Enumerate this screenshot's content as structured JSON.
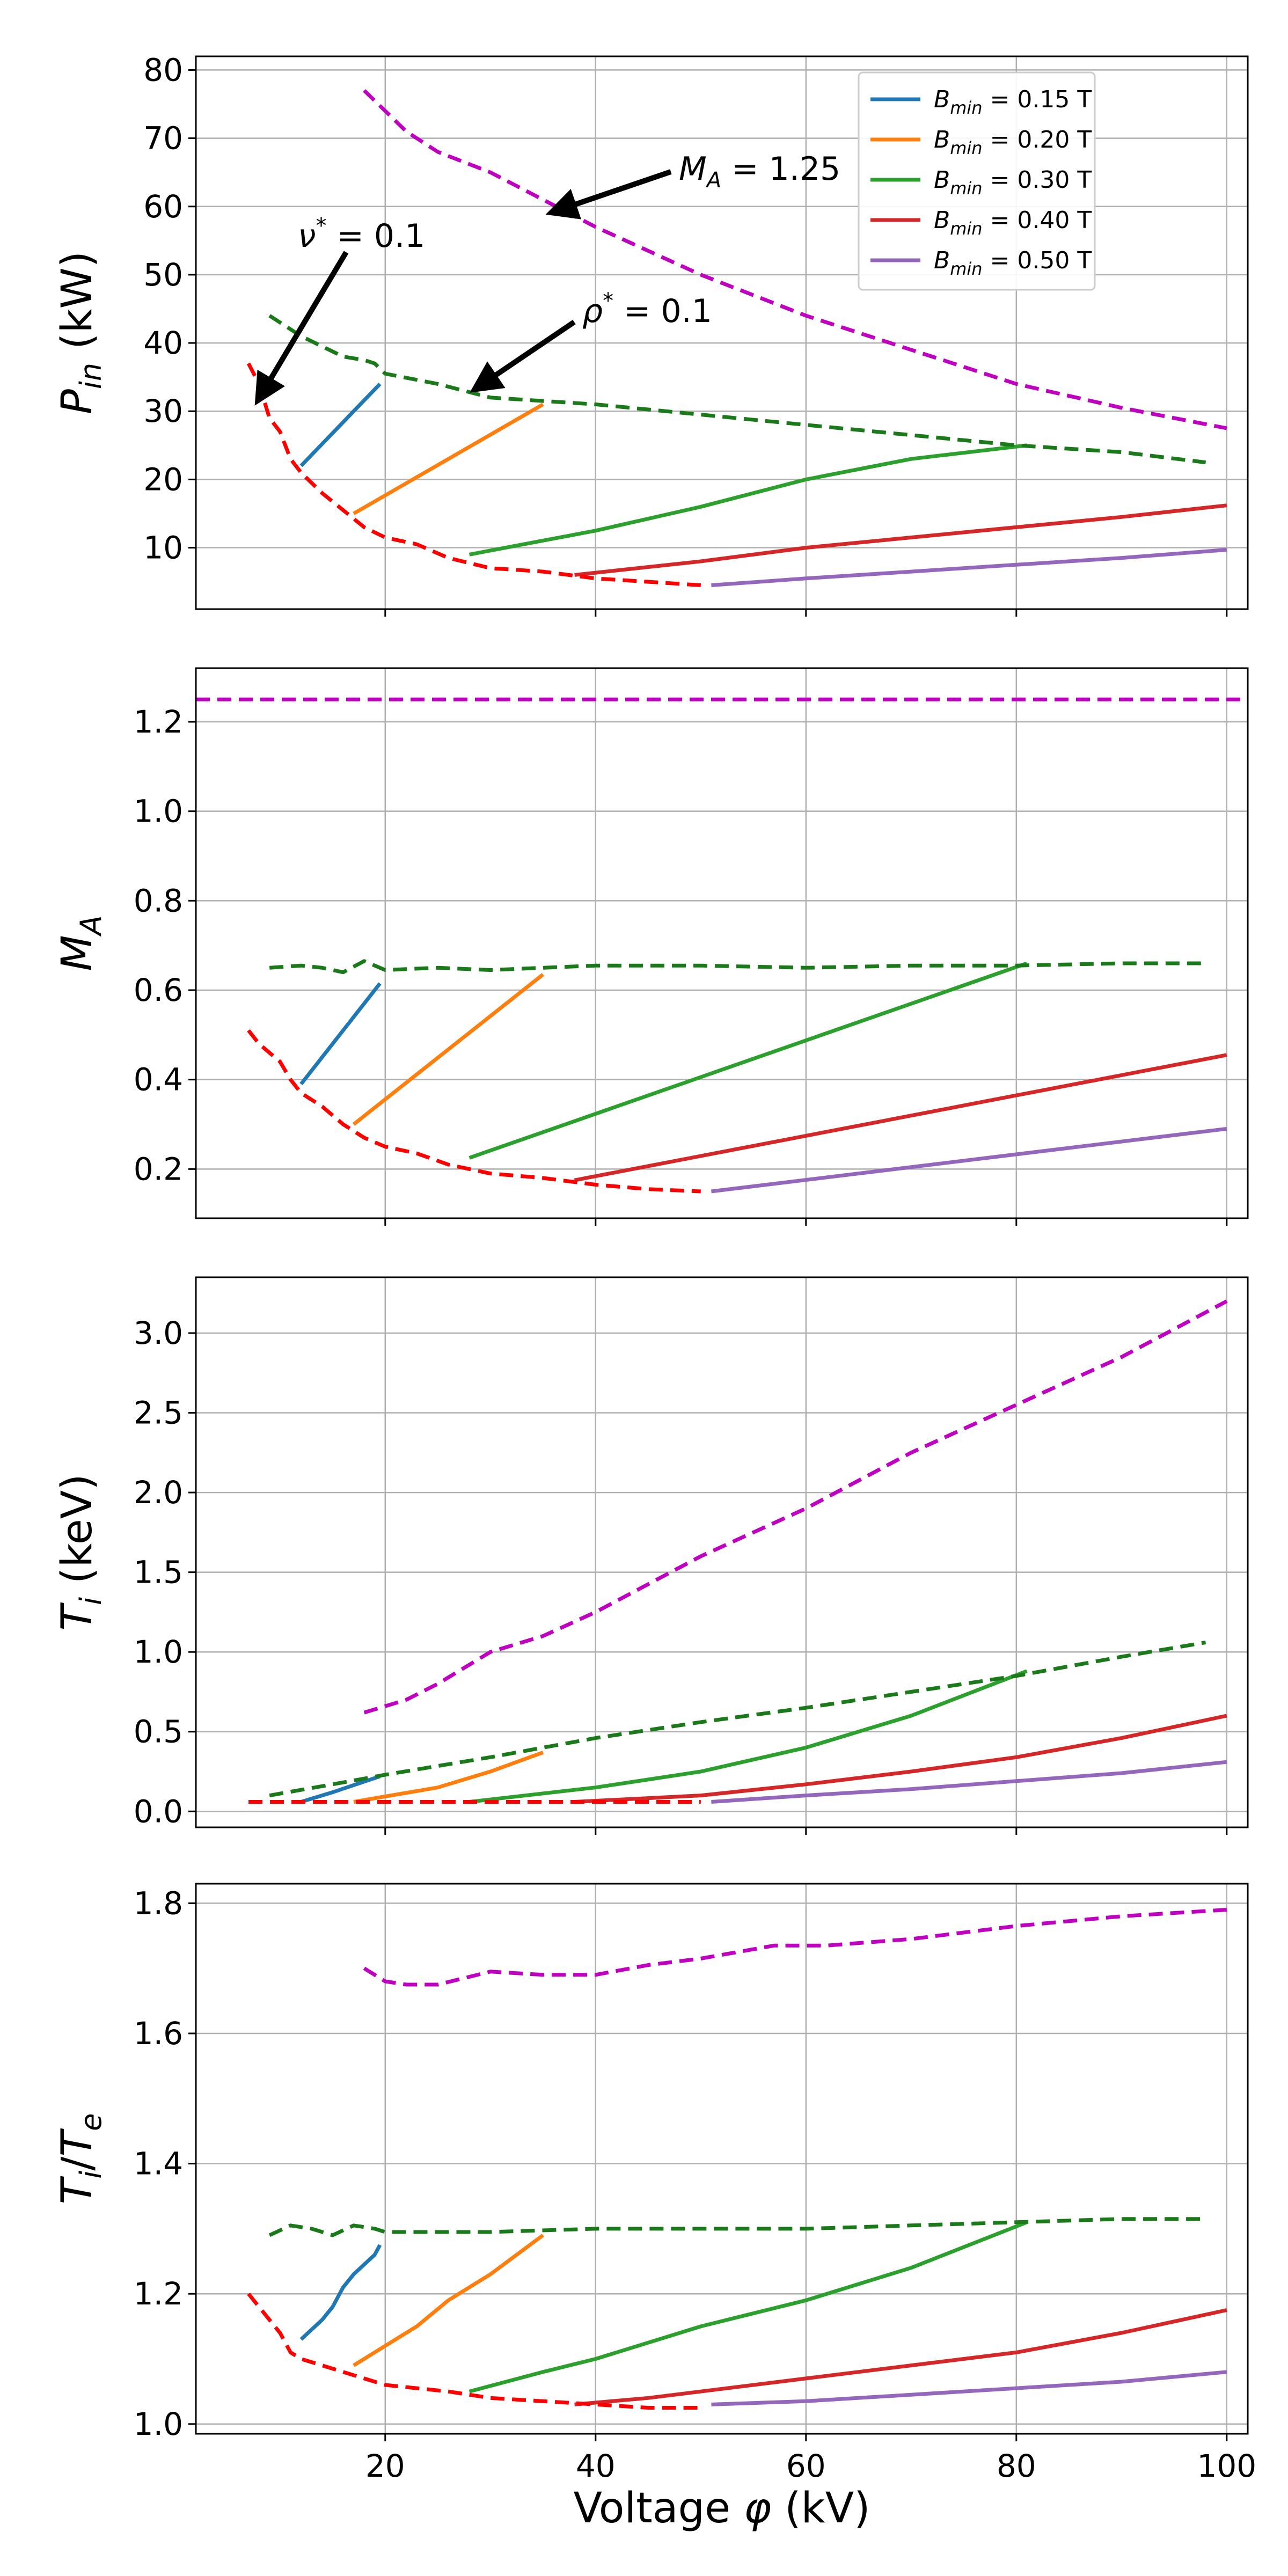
{
  "colors": {
    "blue": "#1f77b4",
    "orange": "#ff7f0e",
    "green": "#2ca02c",
    "red": "#d62728",
    "purple": "#9467bd",
    "magenta_dashed": "#c000c0",
    "green_dashed": "#1a7a1a",
    "red_dashed": "#ff0000"
  },
  "xaxis": {
    "label_prefix": "Voltage ",
    "label_symbol": "φ",
    "label_suffix": " (kV)",
    "ticks": [
      20,
      40,
      60,
      80,
      100
    ],
    "range": [
      2,
      102
    ]
  },
  "legend": {
    "placement": "top-right",
    "entries": [
      {
        "sym": "B",
        "sub": "min",
        "text": " = 0.15 T",
        "color_key": "blue"
      },
      {
        "sym": "B",
        "sub": "min",
        "text": " = 0.20 T",
        "color_key": "orange"
      },
      {
        "sym": "B",
        "sub": "min",
        "text": " = 0.30 T",
        "color_key": "green"
      },
      {
        "sym": "B",
        "sub": "min",
        "text": " = 0.40 T",
        "color_key": "red"
      },
      {
        "sym": "B",
        "sub": "min",
        "text": " = 0.50 T",
        "color_key": "purple"
      }
    ]
  },
  "annotations": {
    "ma": {
      "sym": "M",
      "sub": "A",
      "text": " = 1.25"
    },
    "nu": {
      "sym": "ν",
      "sup": "*",
      "text": " = 0.1"
    },
    "rho": {
      "sym": "ρ",
      "sup": "*",
      "text": " = 0.1"
    }
  },
  "chart_data": [
    {
      "type": "line",
      "ylabel": {
        "sym": "P",
        "sub": "in",
        "unit": " (kW)"
      },
      "ylim": [
        1,
        82
      ],
      "yticks": [
        10,
        20,
        30,
        40,
        50,
        60,
        70,
        80
      ],
      "grid": true,
      "series": [
        {
          "name": "B_min = 0.15 T",
          "color_key": "blue",
          "style": "solid",
          "x": [
            12,
            19.5
          ],
          "y": [
            22,
            34
          ]
        },
        {
          "name": "B_min = 0.20 T",
          "color_key": "orange",
          "style": "solid",
          "x": [
            17,
            35
          ],
          "y": [
            15,
            31
          ]
        },
        {
          "name": "B_min = 0.30 T",
          "color_key": "green",
          "style": "solid",
          "x": [
            28,
            40,
            50,
            60,
            70,
            81
          ],
          "y": [
            9,
            12.5,
            16,
            20,
            23,
            25
          ]
        },
        {
          "name": "B_min = 0.40 T",
          "color_key": "red",
          "style": "solid",
          "x": [
            38,
            50,
            60,
            70,
            80,
            90,
            100
          ],
          "y": [
            6,
            8,
            10,
            11.5,
            13,
            14.5,
            16.2
          ]
        },
        {
          "name": "B_min = 0.50 T",
          "color_key": "purple",
          "style": "solid",
          "x": [
            51,
            60,
            70,
            80,
            90,
            100
          ],
          "y": [
            4.5,
            5.5,
            6.5,
            7.5,
            8.5,
            9.7
          ]
        },
        {
          "color_key": "magenta_dashed",
          "style": "dashed",
          "x": [
            18,
            20,
            22,
            25,
            30,
            35,
            40,
            50,
            60,
            70,
            80,
            90,
            100
          ],
          "y": [
            77,
            74,
            71,
            68,
            65,
            61,
            57,
            50,
            44,
            39,
            34,
            30.5,
            27.5
          ]
        },
        {
          "color_key": "green_dashed",
          "style": "dashed",
          "x": [
            9,
            12,
            14,
            16,
            18,
            19,
            20,
            25,
            30,
            40,
            50,
            60,
            70,
            80,
            90,
            98
          ],
          "y": [
            44,
            41,
            39.5,
            38,
            37.5,
            37,
            35.5,
            34,
            32,
            31,
            29.5,
            28,
            26.5,
            25,
            24,
            22.5
          ]
        },
        {
          "color_key": "red_dashed",
          "style": "dashed",
          "x": [
            7,
            8,
            9,
            10,
            11,
            12,
            14,
            16,
            18,
            20,
            23,
            26,
            30,
            35,
            40,
            45,
            50
          ],
          "y": [
            37,
            34,
            29,
            27,
            23,
            21,
            18,
            15.5,
            13,
            11.5,
            10.5,
            8.5,
            7,
            6.5,
            5.5,
            5,
            4.5
          ]
        }
      ]
    },
    {
      "type": "line",
      "ylabel": {
        "sym": "M",
        "sub": "A",
        "unit": ""
      },
      "ylim": [
        0.09,
        1.32
      ],
      "yticks": [
        0.2,
        0.4,
        0.6,
        0.8,
        1.0,
        1.2
      ],
      "ytick_labels": [
        "0.2",
        "0.4",
        "0.6",
        "0.8",
        "1.0",
        "1.2"
      ],
      "grid": true,
      "series": [
        {
          "name": "B_min = 0.15 T",
          "color_key": "blue",
          "style": "solid",
          "x": [
            12,
            19.5
          ],
          "y": [
            0.39,
            0.615
          ]
        },
        {
          "name": "B_min = 0.20 T",
          "color_key": "orange",
          "style": "solid",
          "x": [
            17,
            35
          ],
          "y": [
            0.3,
            0.635
          ]
        },
        {
          "name": "B_min = 0.30 T",
          "color_key": "green",
          "style": "solid",
          "x": [
            28,
            81
          ],
          "y": [
            0.225,
            0.66
          ]
        },
        {
          "name": "B_min = 0.40 T",
          "color_key": "red",
          "style": "solid",
          "x": [
            38,
            100
          ],
          "y": [
            0.175,
            0.455
          ]
        },
        {
          "name": "B_min = 0.50 T",
          "color_key": "purple",
          "style": "solid",
          "x": [
            51,
            100
          ],
          "y": [
            0.15,
            0.29
          ]
        },
        {
          "color_key": "magenta_dashed",
          "style": "dashed",
          "x": [
            2,
            102
          ],
          "y": [
            1.25,
            1.25
          ]
        },
        {
          "color_key": "green_dashed",
          "style": "dashed",
          "x": [
            9,
            12,
            14,
            16,
            18,
            19,
            20,
            25,
            30,
            40,
            50,
            60,
            70,
            80,
            90,
            98
          ],
          "y": [
            0.65,
            0.655,
            0.65,
            0.64,
            0.665,
            0.655,
            0.645,
            0.65,
            0.645,
            0.655,
            0.655,
            0.65,
            0.655,
            0.655,
            0.66,
            0.66
          ]
        },
        {
          "color_key": "red_dashed",
          "style": "dashed",
          "x": [
            7,
            8,
            9,
            10,
            11,
            12,
            14,
            16,
            18,
            20,
            23,
            26,
            30,
            35,
            40,
            45,
            50
          ],
          "y": [
            0.51,
            0.48,
            0.46,
            0.44,
            0.4,
            0.37,
            0.34,
            0.3,
            0.27,
            0.25,
            0.235,
            0.21,
            0.19,
            0.18,
            0.165,
            0.155,
            0.15
          ]
        }
      ]
    },
    {
      "type": "line",
      "ylabel": {
        "sym": "T",
        "sub": "i",
        "unit": " (keV)"
      },
      "ylim": [
        -0.1,
        3.35
      ],
      "yticks": [
        0.0,
        0.5,
        1.0,
        1.5,
        2.0,
        2.5,
        3.0
      ],
      "ytick_labels": [
        "0.0",
        "0.5",
        "1.0",
        "1.5",
        "2.0",
        "2.5",
        "3.0"
      ],
      "grid": true,
      "series": [
        {
          "name": "B_min = 0.15 T",
          "color_key": "blue",
          "style": "solid",
          "x": [
            12,
            15,
            19.5
          ],
          "y": [
            0.06,
            0.12,
            0.22
          ]
        },
        {
          "name": "B_min = 0.20 T",
          "color_key": "orange",
          "style": "solid",
          "x": [
            17,
            25,
            30,
            35
          ],
          "y": [
            0.06,
            0.15,
            0.25,
            0.37
          ]
        },
        {
          "name": "B_min = 0.30 T",
          "color_key": "green",
          "style": "solid",
          "x": [
            28,
            40,
            50,
            60,
            70,
            81
          ],
          "y": [
            0.06,
            0.15,
            0.25,
            0.4,
            0.6,
            0.88
          ]
        },
        {
          "name": "B_min = 0.40 T",
          "color_key": "red",
          "style": "solid",
          "x": [
            38,
            50,
            60,
            70,
            80,
            90,
            100
          ],
          "y": [
            0.06,
            0.1,
            0.17,
            0.25,
            0.34,
            0.46,
            0.6
          ]
        },
        {
          "name": "B_min = 0.50 T",
          "color_key": "purple",
          "style": "solid",
          "x": [
            51,
            60,
            70,
            80,
            90,
            100
          ],
          "y": [
            0.06,
            0.1,
            0.14,
            0.19,
            0.24,
            0.31
          ]
        },
        {
          "color_key": "magenta_dashed",
          "style": "dashed",
          "x": [
            18,
            22,
            25,
            30,
            35,
            40,
            50,
            60,
            70,
            80,
            90,
            100
          ],
          "y": [
            0.62,
            0.7,
            0.8,
            1.0,
            1.1,
            1.25,
            1.6,
            1.9,
            2.25,
            2.55,
            2.85,
            3.2
          ]
        },
        {
          "color_key": "green_dashed",
          "style": "dashed",
          "x": [
            9,
            15,
            20,
            30,
            40,
            50,
            60,
            70,
            80,
            90,
            98
          ],
          "y": [
            0.1,
            0.17,
            0.23,
            0.34,
            0.46,
            0.56,
            0.65,
            0.75,
            0.85,
            0.97,
            1.06
          ]
        },
        {
          "color_key": "red_dashed",
          "style": "dashed",
          "x": [
            7,
            20,
            30,
            40,
            50
          ],
          "y": [
            0.06,
            0.06,
            0.06,
            0.06,
            0.06
          ]
        }
      ]
    },
    {
      "type": "line",
      "ylabel": {
        "sym": "T",
        "sub": "i",
        "mid": "/",
        "sym2": "T",
        "sub2": "e",
        "unit": ""
      },
      "ylim": [
        0.985,
        1.83
      ],
      "yticks": [
        1.0,
        1.2,
        1.4,
        1.6,
        1.8
      ],
      "ytick_labels": [
        "1.0",
        "1.2",
        "1.4",
        "1.6",
        "1.8"
      ],
      "grid": true,
      "series": [
        {
          "name": "B_min = 0.15 T",
          "color_key": "blue",
          "style": "solid",
          "x": [
            12,
            14,
            15,
            16,
            17,
            18,
            19,
            19.5
          ],
          "y": [
            1.13,
            1.16,
            1.18,
            1.21,
            1.23,
            1.245,
            1.26,
            1.275
          ]
        },
        {
          "name": "B_min = 0.20 T",
          "color_key": "orange",
          "style": "solid",
          "x": [
            17,
            20,
            23,
            26,
            30,
            35
          ],
          "y": [
            1.09,
            1.12,
            1.15,
            1.19,
            1.23,
            1.29
          ]
        },
        {
          "name": "B_min = 0.30 T",
          "color_key": "green",
          "style": "solid",
          "x": [
            28,
            35,
            40,
            50,
            60,
            70,
            81
          ],
          "y": [
            1.05,
            1.08,
            1.1,
            1.15,
            1.19,
            1.24,
            1.31
          ]
        },
        {
          "name": "B_min = 0.40 T",
          "color_key": "red",
          "style": "solid",
          "x": [
            38,
            45,
            50,
            60,
            70,
            80,
            90,
            100
          ],
          "y": [
            1.03,
            1.04,
            1.05,
            1.07,
            1.09,
            1.11,
            1.14,
            1.175
          ]
        },
        {
          "name": "B_min = 0.50 T",
          "color_key": "purple",
          "style": "solid",
          "x": [
            51,
            60,
            70,
            80,
            90,
            100
          ],
          "y": [
            1.03,
            1.035,
            1.045,
            1.055,
            1.065,
            1.08
          ]
        },
        {
          "color_key": "magenta_dashed",
          "style": "dashed",
          "x": [
            18,
            20,
            22,
            25,
            30,
            35,
            40,
            45,
            50,
            57,
            62,
            70,
            80,
            90,
            100
          ],
          "y": [
            1.7,
            1.68,
            1.675,
            1.675,
            1.695,
            1.69,
            1.69,
            1.705,
            1.715,
            1.735,
            1.735,
            1.745,
            1.765,
            1.78,
            1.79
          ]
        },
        {
          "color_key": "green_dashed",
          "style": "dashed",
          "x": [
            9,
            11,
            13,
            15,
            17,
            19,
            20,
            25,
            30,
            40,
            50,
            60,
            70,
            80,
            90,
            98
          ],
          "y": [
            1.29,
            1.305,
            1.3,
            1.29,
            1.305,
            1.3,
            1.295,
            1.295,
            1.295,
            1.3,
            1.3,
            1.3,
            1.305,
            1.31,
            1.315,
            1.315
          ]
        },
        {
          "color_key": "red_dashed",
          "style": "dashed",
          "x": [
            7,
            8,
            9,
            10,
            11,
            12,
            14,
            16,
            18,
            20,
            23,
            26,
            30,
            35,
            40,
            45,
            50
          ],
          "y": [
            1.2,
            1.18,
            1.16,
            1.14,
            1.11,
            1.1,
            1.09,
            1.08,
            1.07,
            1.06,
            1.055,
            1.05,
            1.04,
            1.035,
            1.03,
            1.025,
            1.025
          ]
        }
      ]
    }
  ]
}
